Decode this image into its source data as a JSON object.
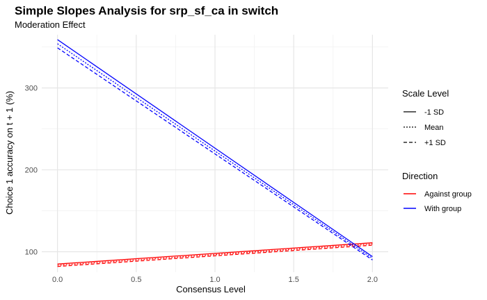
{
  "chart_data": {
    "type": "line",
    "title": "Simple Slopes Analysis for srp_sf_ca in switch",
    "subtitle": "Moderation Effect",
    "xlabel": "Consensus Level",
    "ylabel": "Choice 1 accuracy on t + 1 (%)",
    "xlim": [
      -0.1,
      2.1
    ],
    "ylim": [
      75,
      365
    ],
    "x_ticks": [
      0.0,
      0.5,
      1.0,
      1.5,
      2.0
    ],
    "x_tick_labels": [
      "0.0",
      "0.5",
      "1.0",
      "1.5",
      "2.0"
    ],
    "y_ticks": [
      100,
      200,
      300
    ],
    "y_tick_labels": [
      "100",
      "200",
      "300"
    ],
    "grid": true,
    "legend_position": "right",
    "legends": [
      {
        "title": "Scale Level",
        "entries": [
          {
            "label": "-1 SD",
            "dash": "solid"
          },
          {
            "label": "Mean",
            "dash": "dotted"
          },
          {
            "label": "+1 SD",
            "dash": "dashed"
          }
        ]
      },
      {
        "title": "Direction",
        "entries": [
          {
            "label": "Against group",
            "color": "#ff0000"
          },
          {
            "label": "With group",
            "color": "#0000ff"
          }
        ]
      }
    ],
    "series": [
      {
        "direction": "Against group",
        "scale": "-1 SD",
        "color": "#ff0000",
        "dash": "solid",
        "x": [
          0,
          2
        ],
        "y": [
          85,
          111
        ]
      },
      {
        "direction": "Against group",
        "scale": "Mean",
        "color": "#ff0000",
        "dash": "dotted",
        "x": [
          0,
          2
        ],
        "y": [
          83.5,
          109.5
        ]
      },
      {
        "direction": "Against group",
        "scale": "+1 SD",
        "color": "#ff0000",
        "dash": "dashed",
        "x": [
          0,
          2
        ],
        "y": [
          82,
          108
        ]
      },
      {
        "direction": "With group",
        "scale": "-1 SD",
        "color": "#0000ff",
        "dash": "solid",
        "x": [
          0,
          2
        ],
        "y": [
          359,
          94
        ]
      },
      {
        "direction": "With group",
        "scale": "Mean",
        "color": "#0000ff",
        "dash": "dotted",
        "x": [
          0,
          2
        ],
        "y": [
          354,
          92
        ]
      },
      {
        "direction": "With group",
        "scale": "+1 SD",
        "color": "#0000ff",
        "dash": "dashed",
        "x": [
          0,
          2
        ],
        "y": [
          349,
          90
        ]
      }
    ]
  }
}
